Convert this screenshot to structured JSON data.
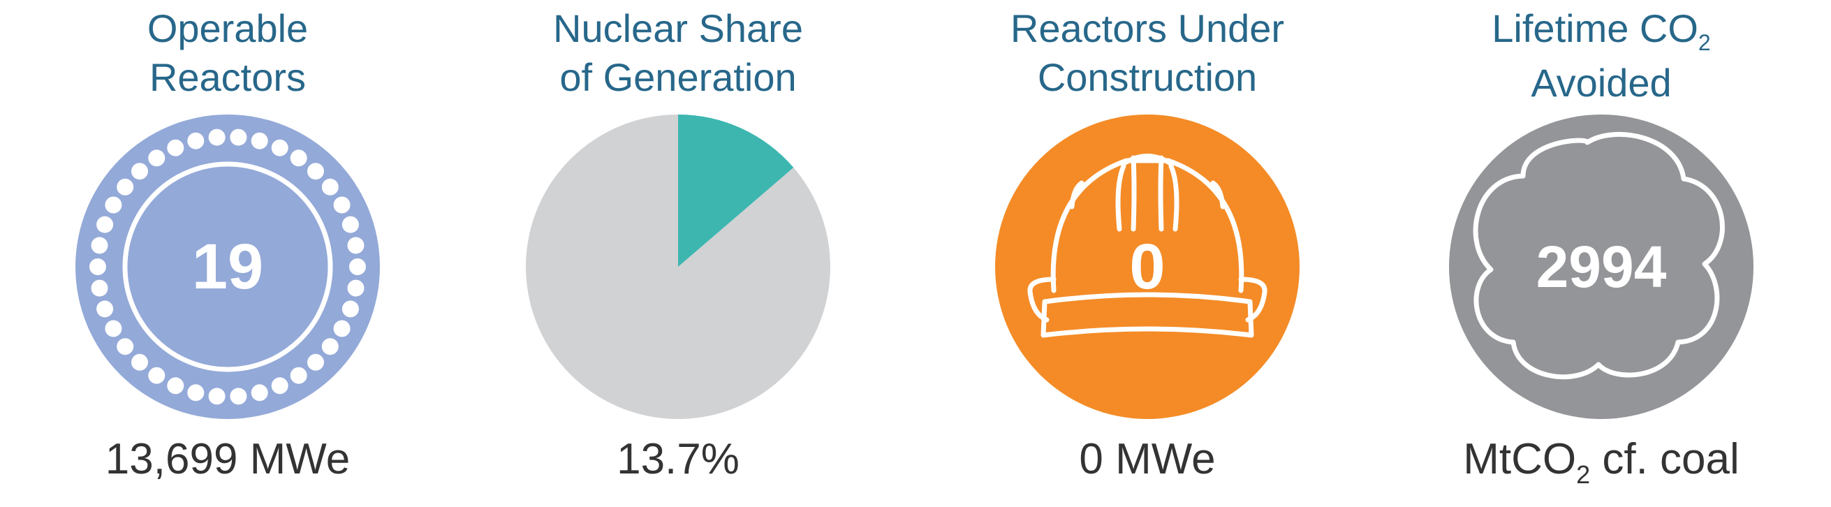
{
  "panels": {
    "operable": {
      "title_line1": "Operable",
      "title_line2": "Reactors",
      "value": "19",
      "caption": "13,699 MWe",
      "color": "#93a9d8"
    },
    "share": {
      "title_line1": "Nuclear Share",
      "title_line2": "of Generation",
      "caption": "13.7%",
      "color_share": "#3db6b0",
      "color_rest": "#d1d2d4"
    },
    "construction": {
      "title_line1": "Reactors Under",
      "title_line2": "Construction",
      "value": "0",
      "caption": "0 MWe",
      "color": "#f48b26",
      "icon": "hard-hat-icon"
    },
    "co2": {
      "title_line1": "Lifetime CO",
      "title_sub": "2",
      "title_line2": "Avoided",
      "value": "2994",
      "caption_pre": "MtCO",
      "caption_sub": "2",
      "caption_post": " cf. coal",
      "color": "#939598",
      "icon": "cloud-icon"
    }
  },
  "chart_data": {
    "type": "pie",
    "values": [
      13.7,
      86.3
    ],
    "categories": [
      "",
      ""
    ],
    "title": "",
    "colors": [
      "#3db6b0",
      "#d1d2d4"
    ]
  }
}
